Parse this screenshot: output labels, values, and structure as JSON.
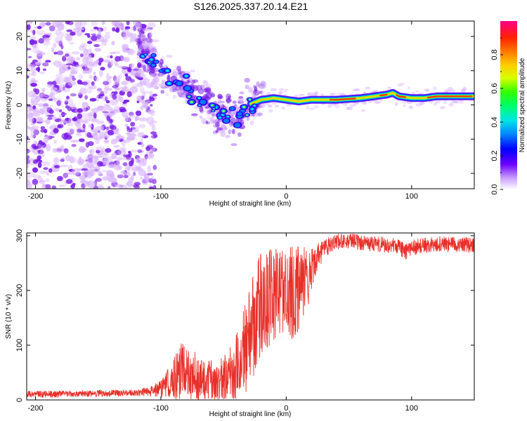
{
  "title": "S126.2025.337.20.14.E21",
  "chart_data": [
    {
      "type": "heatmap",
      "xlabel": "Height of straight line (km)",
      "ylabel": "Frequency (Hz)",
      "xlim": [
        -207,
        150
      ],
      "ylim": [
        -24.5,
        24.5
      ],
      "xticks": [
        -200,
        -100,
        0,
        100
      ],
      "yticks": [
        -20,
        -10,
        0,
        10,
        20
      ],
      "ridge": {
        "x": [
          -115,
          -110,
          -100,
          -90,
          -80,
          -70,
          -60,
          -50,
          -40,
          -35,
          -30,
          -20,
          -10,
          0,
          10,
          20,
          40,
          60,
          70,
          80,
          85,
          90,
          100,
          110,
          120,
          150
        ],
        "y": [
          16,
          14,
          10,
          7,
          5,
          2,
          -1,
          -3,
          -4,
          -2,
          0,
          1.5,
          2,
          1.5,
          1,
          1.5,
          1.5,
          2,
          2.5,
          3,
          3.5,
          2.5,
          2,
          2,
          2.5,
          2.5
        ]
      },
      "noise_region_x": [
        -207,
        -110
      ]
    },
    {
      "type": "line",
      "xlabel": "Height of straight line (km)",
      "ylabel": "SNR (10 * v/v)",
      "xlim": [
        -207,
        150
      ],
      "ylim": [
        0,
        305
      ],
      "xticks": [
        -200,
        -100,
        0,
        100
      ],
      "yticks": [
        0,
        100,
        200,
        300
      ],
      "series": [
        {
          "name": "SNR",
          "color": "#e8302a",
          "x": [
            -207,
            -180,
            -150,
            -120,
            -110,
            -100,
            -95,
            -90,
            -85,
            -80,
            -75,
            -70,
            -65,
            -60,
            -55,
            -50,
            -45,
            -40,
            -35,
            -30,
            -25,
            -20,
            -15,
            -10,
            -5,
            0,
            5,
            10,
            15,
            20,
            25,
            30,
            35,
            40,
            50,
            60,
            70,
            80,
            90,
            95,
            100,
            110,
            120,
            130,
            140,
            150
          ],
          "mean": [
            10,
            11,
            12,
            13,
            15,
            20,
            28,
            38,
            50,
            55,
            45,
            40,
            38,
            36,
            35,
            38,
            45,
            60,
            80,
            110,
            150,
            170,
            180,
            190,
            200,
            205,
            195,
            200,
            215,
            240,
            260,
            275,
            285,
            290,
            290,
            288,
            285,
            283,
            280,
            270,
            278,
            282,
            285,
            284,
            283,
            284
          ],
          "spread": [
            6,
            6,
            6,
            6,
            8,
            15,
            25,
            40,
            55,
            50,
            45,
            45,
            40,
            40,
            40,
            45,
            55,
            65,
            75,
            90,
            100,
            100,
            95,
            90,
            85,
            80,
            85,
            80,
            70,
            40,
            25,
            18,
            15,
            15,
            14,
            14,
            14,
            14,
            14,
            14,
            14,
            14,
            14,
            14,
            14,
            14
          ]
        }
      ]
    }
  ],
  "colorbar": {
    "label": "Normalized spectral amplitude",
    "range": [
      0,
      1
    ],
    "ticks": [
      0.0,
      0.2,
      0.4,
      0.6,
      0.8
    ],
    "tick_labels": [
      "0.0",
      "0.2",
      "0.4",
      "0.6",
      "0.8"
    ]
  },
  "colors": {
    "snr_line": "#e8302a",
    "noise_light": "#d9b3ff",
    "noise_dark": "#7a1de6"
  }
}
